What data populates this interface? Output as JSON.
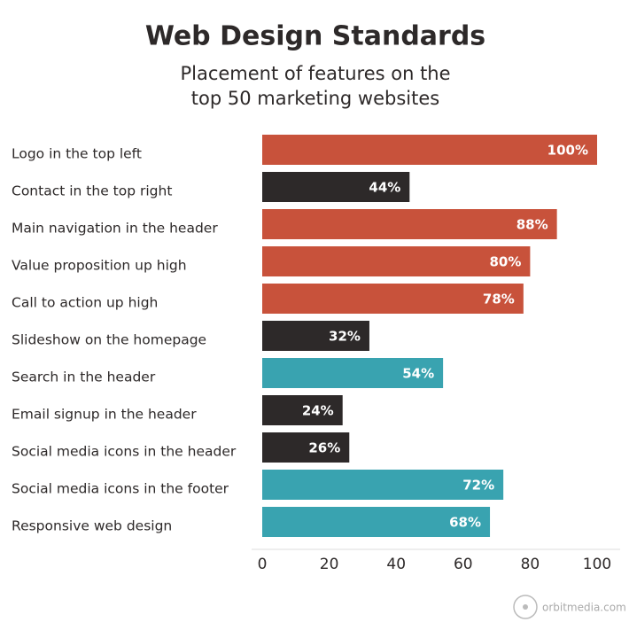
{
  "chart_data": {
    "type": "hbar",
    "title": "Web Design Standards",
    "subtitle": [
      "Placement of features on the",
      "top 50 marketing websites"
    ],
    "categories": [
      "Logo in the top left",
      "Contact in the top right",
      "Main navigation in the header",
      "Value proposition up high",
      "Call to action up high",
      "Slideshow on the homepage",
      "Search in the header",
      "Email signup in the header",
      "Social media icons in the header",
      "Social media icons in the footer",
      "Responsive web design"
    ],
    "values": [
      100,
      44,
      88,
      80,
      78,
      32,
      54,
      24,
      26,
      72,
      68
    ],
    "value_labels": [
      "100%",
      "44%",
      "88%",
      "80%",
      "78%",
      "32%",
      "54%",
      "24%",
      "26%",
      "72%",
      "68%"
    ],
    "colors": [
      "#c8523b",
      "#2d2929",
      "#c8523b",
      "#c8523b",
      "#c8523b",
      "#2d2929",
      "#39a3b0",
      "#2d2929",
      "#2d2929",
      "#39a3b0",
      "#39a3b0"
    ],
    "xlim": [
      0,
      100
    ],
    "xticks": [
      0,
      20,
      40,
      60,
      80,
      100
    ],
    "watermark": "orbitmedia.com"
  }
}
